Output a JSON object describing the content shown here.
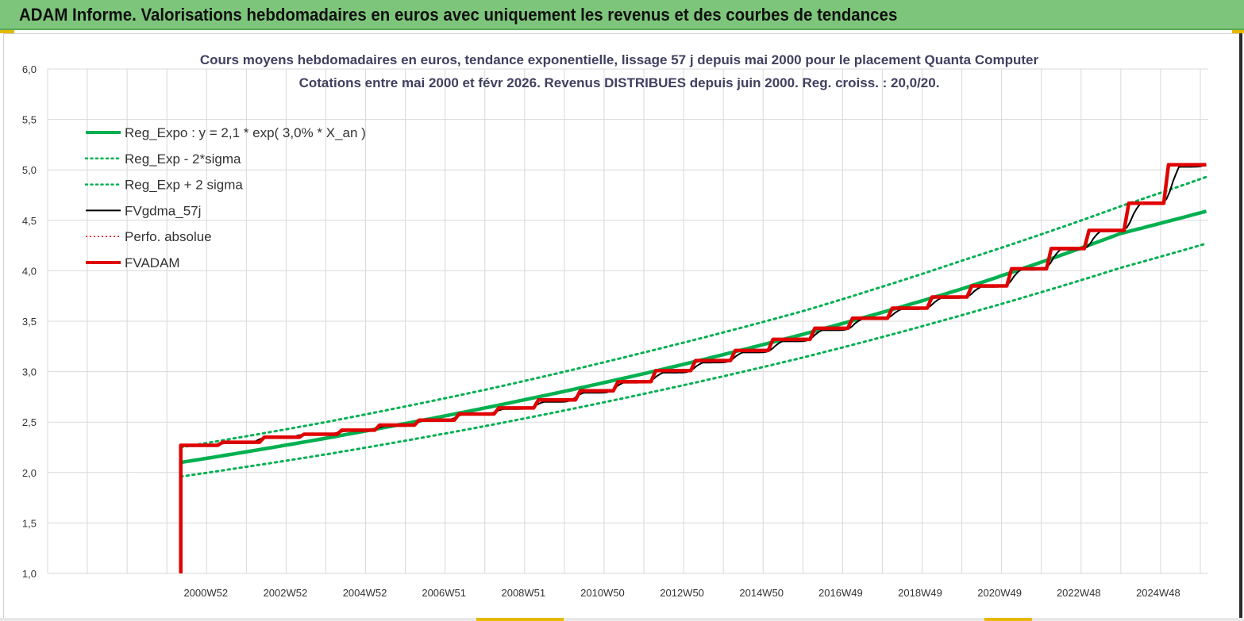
{
  "header": {
    "title": "ADAM Informe. Valorisations hebdomadaires en euros avec uniquement les revenus et des courbes de tendances"
  },
  "chart_data": {
    "type": "line",
    "title_line1": "Cours moyens hebdomadaires en euros, tendance exponentielle, lissage 57 j depuis mai 2000 pour le placement Quanta Computer",
    "title_line2": "Cotations entre mai 2000 et févr 2026. Revenus DISTRIBUES depuis juin 2000. Reg. croiss. : 20,0/20.",
    "xlabel": "",
    "ylabel": "",
    "x_tick_labels": [
      "2000W52",
      "2002W52",
      "2004W52",
      "2006W51",
      "2008W51",
      "2010W50",
      "2012W50",
      "2014W50",
      "2016W49",
      "2018W49",
      "2020W49",
      "2022W48",
      "2024W48"
    ],
    "x_tick_years": [
      2000.98,
      2002.98,
      2004.98,
      2006.97,
      2008.97,
      2010.96,
      2012.96,
      2014.96,
      2016.95,
      2018.95,
      2020.95,
      2022.94,
      2024.94
    ],
    "x_range": [
      1997.0,
      2026.2
    ],
    "y_ticks": [
      "1,0",
      "1,5",
      "2,0",
      "2,5",
      "3,0",
      "3,5",
      "4,0",
      "4,5",
      "5,0",
      "5,5",
      "6,0"
    ],
    "y_tick_values": [
      1.0,
      1.5,
      2.0,
      2.5,
      3.0,
      3.5,
      4.0,
      4.5,
      5.0,
      5.5,
      6.0
    ],
    "ylim": [
      1.0,
      6.0
    ],
    "grid": true,
    "legend_position": "top-left",
    "start_year": 2000.35,
    "end_year": 2026.15,
    "series": [
      {
        "name": "Reg_Expo : y = 2,1 * exp( 3,0% *  X_an )",
        "color": "#00b050",
        "style": "thick",
        "points": [
          [
            2000.35,
            2.1
          ],
          [
            2004,
            2.34
          ],
          [
            2008,
            2.64
          ],
          [
            2012,
            2.98
          ],
          [
            2016,
            3.37
          ],
          [
            2020,
            3.82
          ],
          [
            2024,
            4.37
          ],
          [
            2026.15,
            4.59
          ]
        ]
      },
      {
        "name": "Reg_Exp - 2*sigma",
        "color": "#00b050",
        "style": "dotted",
        "points": [
          [
            2000.35,
            1.96
          ],
          [
            2004,
            2.18
          ],
          [
            2008,
            2.46
          ],
          [
            2012,
            2.78
          ],
          [
            2016,
            3.14
          ],
          [
            2020,
            3.56
          ],
          [
            2024,
            4.03
          ],
          [
            2026.15,
            4.27
          ]
        ]
      },
      {
        "name": "Reg_Exp + 2 sigma",
        "color": "#00b050",
        "style": "dotted",
        "points": [
          [
            2000.35,
            2.25
          ],
          [
            2004,
            2.5
          ],
          [
            2008,
            2.82
          ],
          [
            2012,
            3.19
          ],
          [
            2016,
            3.6
          ],
          [
            2020,
            4.1
          ],
          [
            2024,
            4.64
          ],
          [
            2026.15,
            4.93
          ]
        ]
      },
      {
        "name": "FVgdma_57j",
        "color": "#000000",
        "style": "solid",
        "points": [
          [
            2000.35,
            2.27
          ],
          [
            2001.4,
            2.29
          ],
          [
            2002.4,
            2.35
          ],
          [
            2003.4,
            2.38
          ],
          [
            2004.4,
            2.41
          ],
          [
            2005.4,
            2.46
          ],
          [
            2006.4,
            2.52
          ],
          [
            2007.4,
            2.58
          ],
          [
            2008.4,
            2.63
          ],
          [
            2009.4,
            2.7
          ],
          [
            2010.4,
            2.79
          ],
          [
            2011.4,
            2.89
          ],
          [
            2012.4,
            2.99
          ],
          [
            2013.4,
            3.09
          ],
          [
            2014.4,
            3.19
          ],
          [
            2015.4,
            3.3
          ],
          [
            2016.4,
            3.41
          ],
          [
            2017.4,
            3.52
          ],
          [
            2018.4,
            3.62
          ],
          [
            2019.4,
            3.73
          ],
          [
            2020.4,
            3.84
          ],
          [
            2021.4,
            4.01
          ],
          [
            2022.4,
            4.21
          ],
          [
            2023.4,
            4.39
          ],
          [
            2024.4,
            4.66
          ],
          [
            2025.4,
            5.03
          ],
          [
            2026.15,
            5.05
          ]
        ]
      },
      {
        "name": "Perfo. absolue",
        "color": "#e00000",
        "style": "dotted-thin",
        "points": []
      },
      {
        "name": "FVADAM",
        "color": "#e00000",
        "style": "thick",
        "start_value": 1.0,
        "steps": [
          [
            2000.35,
            2.27
          ],
          [
            2001.4,
            2.3
          ],
          [
            2002.45,
            2.35
          ],
          [
            2003.45,
            2.38
          ],
          [
            2004.4,
            2.42
          ],
          [
            2005.35,
            2.47
          ],
          [
            2006.35,
            2.52
          ],
          [
            2007.35,
            2.58
          ],
          [
            2008.35,
            2.64
          ],
          [
            2009.35,
            2.72
          ],
          [
            2010.4,
            2.81
          ],
          [
            2011.35,
            2.9
          ],
          [
            2012.3,
            3.01
          ],
          [
            2013.3,
            3.11
          ],
          [
            2014.3,
            3.21
          ],
          [
            2015.25,
            3.32
          ],
          [
            2016.3,
            3.43
          ],
          [
            2017.25,
            3.53
          ],
          [
            2018.25,
            3.63
          ],
          [
            2019.25,
            3.74
          ],
          [
            2020.25,
            3.85
          ],
          [
            2021.25,
            4.02
          ],
          [
            2022.25,
            4.22
          ],
          [
            2023.2,
            4.4
          ],
          [
            2024.2,
            4.67
          ],
          [
            2025.2,
            5.05
          ]
        ]
      }
    ]
  }
}
